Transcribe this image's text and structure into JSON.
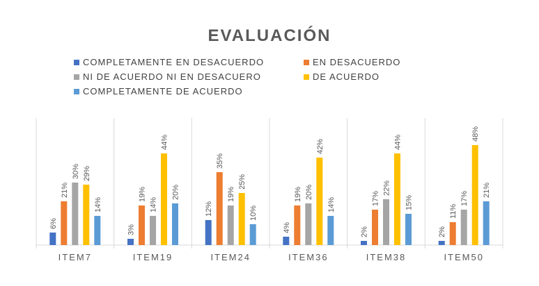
{
  "chart_data": {
    "type": "bar",
    "title": "EVALUACIÓN",
    "categories": [
      "ITEM7",
      "ITEM19",
      "ITEM24",
      "ITEM36",
      "ITEM38",
      "ITEM50"
    ],
    "series": [
      {
        "name": "COMPLETAMENTE EN DESACUERDO",
        "color": "#4472C4",
        "values": [
          6,
          3,
          12,
          4,
          2,
          2
        ],
        "labels": [
          "6%",
          "3%",
          "12%",
          "4%",
          "2%",
          "2%"
        ]
      },
      {
        "name": "EN DESACUERDO",
        "color": "#ED7D31",
        "values": [
          21,
          19,
          35,
          19,
          17,
          11
        ],
        "labels": [
          "21%",
          "19%",
          "35%",
          "19%",
          "17%",
          "11%"
        ]
      },
      {
        "name": "NI DE ACUERDO NI EN DESACUERO",
        "color": "#A5A5A5",
        "values": [
          30,
          14,
          19,
          20,
          22,
          17
        ],
        "labels": [
          "30%",
          "14%",
          "19%",
          "20%",
          "22%",
          "17%"
        ]
      },
      {
        "name": "DE ACUERDO",
        "color": "#FFC000",
        "values": [
          29,
          44,
          25,
          42,
          44,
          48
        ],
        "labels": [
          "29%",
          "44%",
          "25%",
          "42%",
          "44%",
          "48%"
        ]
      },
      {
        "name": "COMPLETAMENTE DE ACUERDO",
        "color": "#5B9BD5",
        "values": [
          14,
          20,
          10,
          14,
          15,
          21
        ],
        "labels": [
          "14%",
          "20%",
          "10%",
          "14%",
          "15%",
          "21%"
        ]
      }
    ],
    "ylim": [
      0,
      60
    ],
    "grid": "vertical separators between categories",
    "legend_position": "top"
  }
}
